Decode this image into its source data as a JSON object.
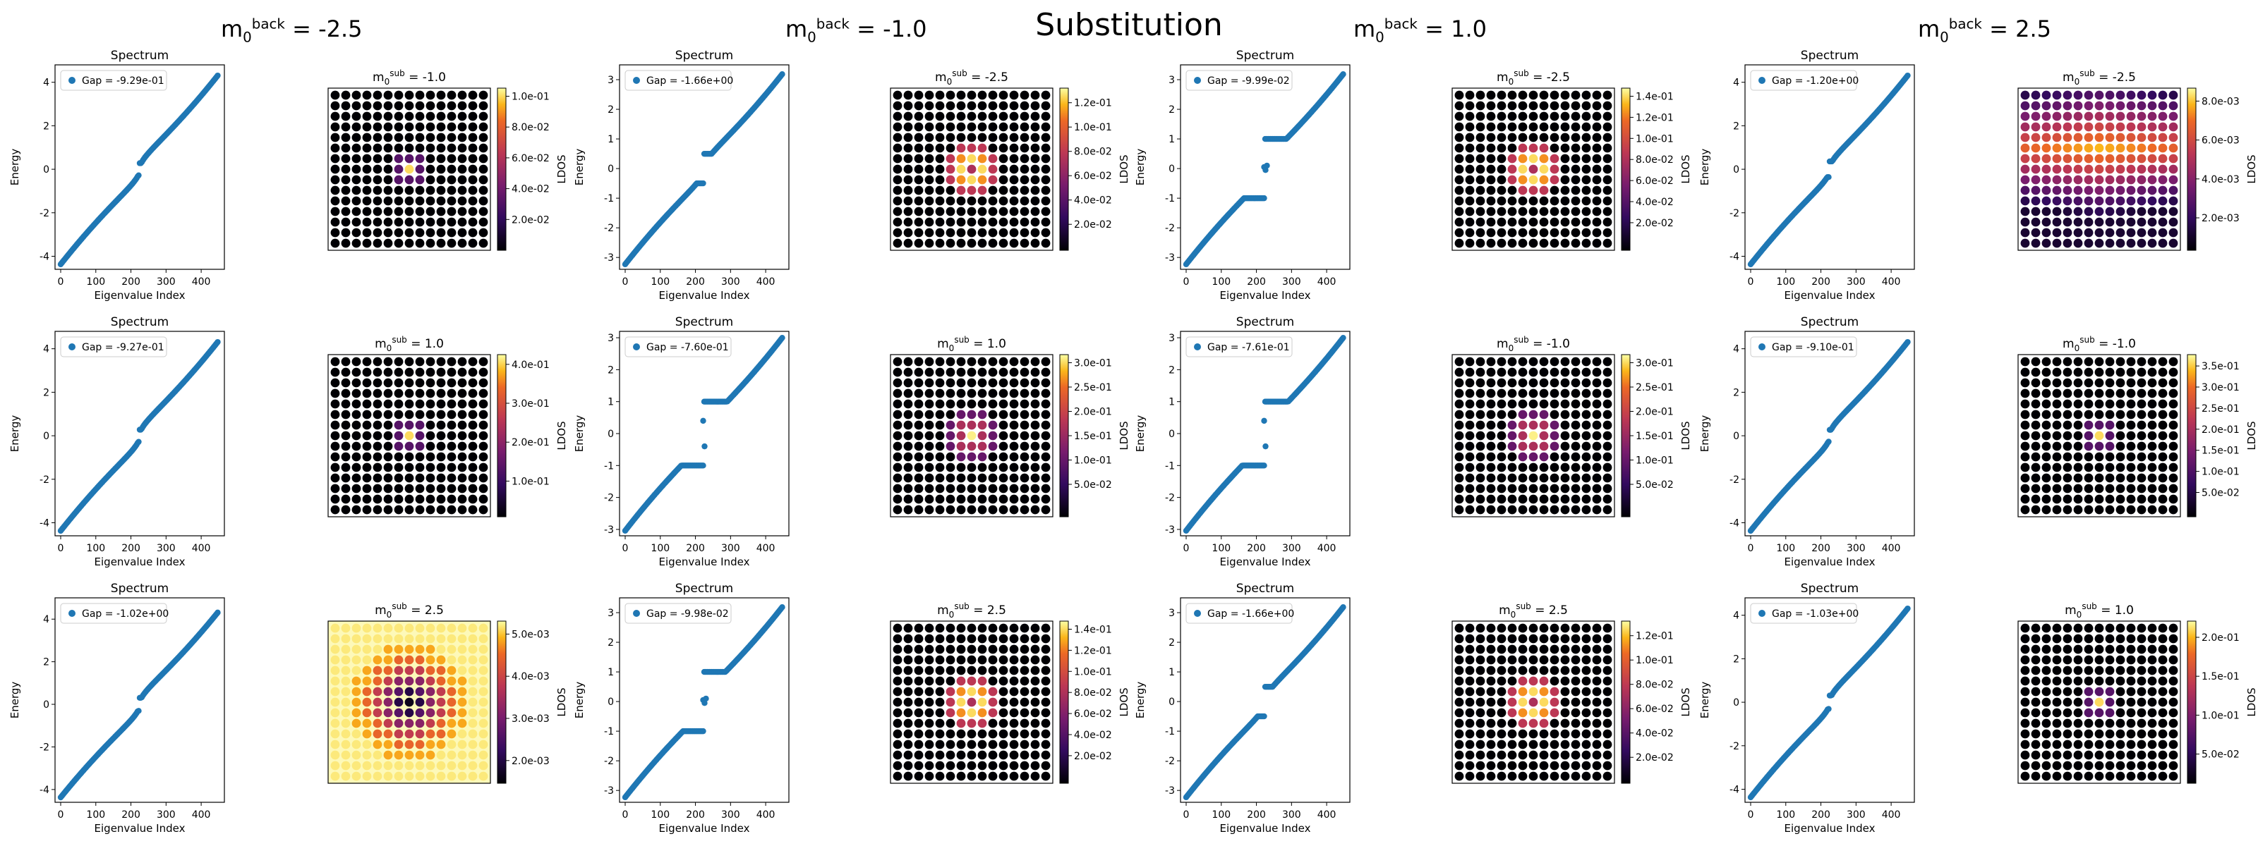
{
  "title": "Substitution",
  "columns": [
    {
      "back": "-2.5"
    },
    {
      "back": "-1.0"
    },
    {
      "back": "1.0"
    },
    {
      "back": "2.5"
    }
  ],
  "chart_data": {
    "type": "scatter",
    "spectrum_title": "Spectrum",
    "xlabel": "Eigenvalue Index",
    "ylabel": "Energy",
    "ldos_label": "LDOS",
    "xticks": [
      0,
      100,
      200,
      300,
      400
    ],
    "panels": [
      [
        {
          "gap": "Gap = -9.29e-01",
          "ylim": [
            -4.6,
            4.8
          ],
          "yticks": [
            -4,
            -2,
            0,
            2,
            4
          ],
          "midgap": [],
          "ldos": {
            "sub": "-1.0",
            "pattern": "weak",
            "ticks": [
              "1.0e-01",
              "8.0e-02",
              "6.0e-02",
              "4.0e-02",
              "2.0e-02"
            ],
            "tickpos": [
              0.95,
              0.76,
              0.57,
              0.38,
              0.19
            ]
          }
        },
        {
          "gap": "Gap = -9.27e-01",
          "ylim": [
            -4.6,
            4.8
          ],
          "yticks": [
            -4,
            -2,
            0,
            2,
            4
          ],
          "midgap": [],
          "ldos": {
            "sub": "1.0",
            "pattern": "weak",
            "ticks": [
              "4.0e-01",
              "3.0e-01",
              "2.0e-01",
              "1.0e-01"
            ],
            "tickpos": [
              0.94,
              0.7,
              0.46,
              0.22
            ]
          }
        },
        {
          "gap": "Gap = -1.02e+00",
          "ylim": [
            -4.6,
            5.0
          ],
          "yticks": [
            -4,
            -2,
            0,
            2,
            4
          ],
          "midgap": [],
          "ldos": {
            "sub": "2.5",
            "pattern": "ring",
            "ticks": [
              "5.0e-03",
              "4.0e-03",
              "3.0e-03",
              "2.0e-03"
            ],
            "tickpos": [
              0.92,
              0.66,
              0.4,
              0.14
            ]
          }
        }
      ],
      [
        {
          "gap": "Gap = -1.66e+00",
          "ylim": [
            -3.4,
            3.5
          ],
          "yticks": [
            -3,
            -2,
            -1,
            0,
            1,
            2,
            3
          ],
          "midgap": [],
          "ldos": {
            "sub": "-2.5",
            "pattern": "bright",
            "ticks": [
              "1.2e-01",
              "1.0e-01",
              "8.0e-02",
              "6.0e-02",
              "4.0e-02",
              "2.0e-02"
            ],
            "tickpos": [
              0.91,
              0.76,
              0.61,
              0.46,
              0.31,
              0.16
            ]
          }
        },
        {
          "gap": "Gap = -7.60e-01",
          "ylim": [
            -3.2,
            3.2
          ],
          "yticks": [
            -3,
            -2,
            -1,
            0,
            1,
            2,
            3
          ],
          "midgap": [
            0.4,
            -0.4
          ],
          "ldos": {
            "sub": "1.0",
            "pattern": "dim",
            "ticks": [
              "3.0e-01",
              "2.5e-01",
              "2.0e-01",
              "1.5e-01",
              "1.0e-01",
              "5.0e-02"
            ],
            "tickpos": [
              0.95,
              0.8,
              0.65,
              0.5,
              0.35,
              0.2
            ]
          }
        },
        {
          "gap": "Gap = -9.98e-02",
          "ylim": [
            -3.4,
            3.5
          ],
          "yticks": [
            -3,
            -2,
            -1,
            0,
            1,
            2,
            3
          ],
          "midgap": [
            0.05,
            -0.05,
            0.1
          ],
          "ldos": {
            "sub": "2.5",
            "pattern": "bright",
            "ticks": [
              "1.4e-01",
              "1.2e-01",
              "1.0e-01",
              "8.0e-02",
              "6.0e-02",
              "4.0e-02",
              "2.0e-02"
            ],
            "tickpos": [
              0.95,
              0.82,
              0.69,
              0.56,
              0.43,
              0.3,
              0.17
            ]
          }
        }
      ],
      [
        {
          "gap": "Gap = -9.99e-02",
          "ylim": [
            -3.4,
            3.5
          ],
          "yticks": [
            -3,
            -2,
            -1,
            0,
            1,
            2,
            3
          ],
          "midgap": [
            0.05,
            -0.05,
            0.1
          ],
          "ldos": {
            "sub": "-2.5",
            "pattern": "bright",
            "ticks": [
              "1.4e-01",
              "1.2e-01",
              "1.0e-01",
              "8.0e-02",
              "6.0e-02",
              "4.0e-02",
              "2.0e-02"
            ],
            "tickpos": [
              0.95,
              0.82,
              0.69,
              0.56,
              0.43,
              0.3,
              0.17
            ]
          }
        },
        {
          "gap": "Gap = -7.61e-01",
          "ylim": [
            -3.2,
            3.2
          ],
          "yticks": [
            -3,
            -2,
            -1,
            0,
            1,
            2,
            3
          ],
          "midgap": [
            0.4,
            -0.4
          ],
          "ldos": {
            "sub": "-1.0",
            "pattern": "dim",
            "ticks": [
              "3.0e-01",
              "2.5e-01",
              "2.0e-01",
              "1.5e-01",
              "1.0e-01",
              "5.0e-02"
            ],
            "tickpos": [
              0.95,
              0.8,
              0.65,
              0.5,
              0.35,
              0.2
            ]
          }
        },
        {
          "gap": "Gap = -1.66e+00",
          "ylim": [
            -3.4,
            3.5
          ],
          "yticks": [
            -3,
            -2,
            -1,
            0,
            1,
            2,
            3
          ],
          "midgap": [],
          "ldos": {
            "sub": "2.5",
            "pattern": "bright",
            "ticks": [
              "1.2e-01",
              "1.0e-01",
              "8.0e-02",
              "6.0e-02",
              "4.0e-02",
              "2.0e-02"
            ],
            "tickpos": [
              0.91,
              0.76,
              0.61,
              0.46,
              0.31,
              0.16
            ]
          }
        }
      ],
      [
        {
          "gap": "Gap = -1.20e+00",
          "ylim": [
            -4.6,
            4.8
          ],
          "yticks": [
            -4,
            -2,
            0,
            2,
            4
          ],
          "midgap": [],
          "ldos": {
            "sub": "-2.5",
            "pattern": "stripes",
            "ticks": [
              "8.0e-03",
              "6.0e-03",
              "4.0e-03",
              "2.0e-03"
            ],
            "tickpos": [
              0.92,
              0.68,
              0.44,
              0.2
            ]
          }
        },
        {
          "gap": "Gap = -9.10e-01",
          "ylim": [
            -4.6,
            4.8
          ],
          "yticks": [
            -4,
            -2,
            0,
            2,
            4
          ],
          "midgap": [],
          "ldos": {
            "sub": "-1.0",
            "pattern": "weak",
            "ticks": [
              "3.5e-01",
              "3.0e-01",
              "2.5e-01",
              "2.0e-01",
              "1.5e-01",
              "1.0e-01",
              "5.0e-02"
            ],
            "tickpos": [
              0.93,
              0.8,
              0.67,
              0.54,
              0.41,
              0.28,
              0.15
            ]
          }
        },
        {
          "gap": "Gap = -1.03e+00",
          "ylim": [
            -4.6,
            4.8
          ],
          "yticks": [
            -4,
            -2,
            0,
            2,
            4
          ],
          "midgap": [],
          "ldos": {
            "sub": "1.0",
            "pattern": "weak",
            "ticks": [
              "2.0e-01",
              "1.5e-01",
              "1.0e-01",
              "5.0e-02"
            ],
            "tickpos": [
              0.9,
              0.66,
              0.42,
              0.18
            ]
          }
        }
      ]
    ]
  }
}
